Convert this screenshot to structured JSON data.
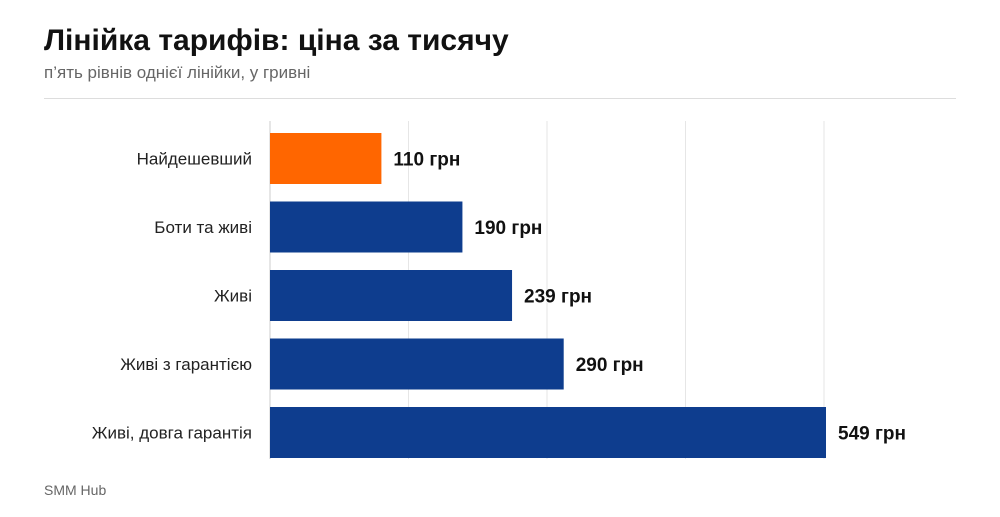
{
  "title": "Лінійка тарифів: ціна за тисячу",
  "subtitle": "п’ять рівнів однієї лінійки, у гривні",
  "source": "SMM Hub",
  "colors": {
    "highlight": "#ff6600",
    "bar": "#0e3d8e",
    "grid": "#e6e6e6",
    "axis": "#cccccc"
  },
  "chart_data": {
    "type": "bar",
    "orientation": "horizontal",
    "categories": [
      "Найдешевший",
      "Боти та живі",
      "Живі",
      "Живі з гарантією",
      "Живі, довга гарантія"
    ],
    "values": [
      110,
      190,
      239,
      290,
      549
    ],
    "value_labels": [
      "110 грн",
      "190 грн",
      "239 грн",
      "290 грн",
      "549 грн"
    ],
    "highlight_index": 0,
    "xlim": [
      0,
      550
    ],
    "grid": true,
    "legend": "none",
    "title": "Лінійка тарифів: ціна за тисячу",
    "xlabel": "",
    "ylabel": ""
  }
}
